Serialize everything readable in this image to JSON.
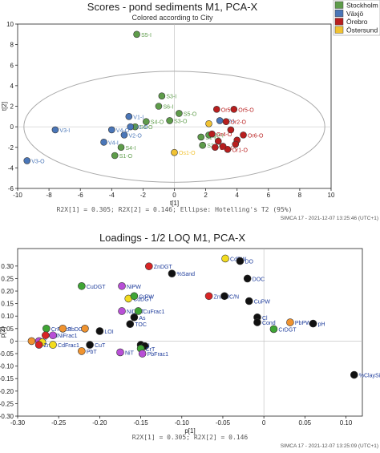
{
  "colors": {
    "stockholm": "#5e9c4a",
    "vaxjo": "#4a76b8",
    "orebro": "#b81e1e",
    "ostersund": "#f1c232",
    "loading_green": "#3fa535",
    "loading_purple": "#b84fd6",
    "loading_yellow": "#f3dc1f",
    "loading_black": "#111111",
    "loading_orange": "#f0932f",
    "loading_red": "#d82525",
    "loading_label": "#1f3d9c",
    "ellipse": "#aaaaaa",
    "axis": "#222222"
  },
  "chart_data": [
    {
      "type": "scatter",
      "title": "Scores - pond sediments M1, PCA-X",
      "subtitle": "Colored according to City",
      "xlabel": "t[1]",
      "ylabel": "t[2]",
      "xlim": [
        -10,
        10
      ],
      "ylim": [
        -6,
        10
      ],
      "x_ticks": [
        -10,
        -8,
        -6,
        -4,
        -2,
        0,
        2,
        4,
        6,
        8,
        10
      ],
      "y_ticks": [
        -6,
        -4,
        -2,
        0,
        2,
        4,
        6,
        8,
        10
      ],
      "x_tick_labels": [
        "-10",
        "-8",
        "-6",
        "-4",
        "-2",
        "0",
        "2",
        "4",
        "6",
        "8",
        "10"
      ],
      "y_tick_labels": [
        "-6",
        "-4",
        "-2",
        "0",
        "2",
        "4",
        "6",
        "8",
        "10"
      ],
      "footer": "R2X[1] = 0.305; R2X[2] = 0.146; Ellipse: Hotelling's T2 (95%)",
      "software": "SIMCA 17 - 2021-12-07 13:25:46 (UTC+1)",
      "legend": [
        {
          "name": "Stockholm",
          "color_key": "stockholm"
        },
        {
          "name": "Växjö",
          "color_key": "vaxjo"
        },
        {
          "name": "Örebro",
          "color_key": "orebro"
        },
        {
          "name": "Östersund",
          "color_key": "ostersund"
        }
      ],
      "ellipse": {
        "cx": 0,
        "cy": 0,
        "rx": 9.6,
        "ry": 5.4
      },
      "points": [
        {
          "x": -2.4,
          "y": 9.0,
          "label": "S5-I",
          "group": "stockholm"
        },
        {
          "x": -0.8,
          "y": 3.0,
          "label": "S3-I",
          "group": "stockholm"
        },
        {
          "x": -1.0,
          "y": 2.0,
          "label": "S6-I",
          "group": "stockholm"
        },
        {
          "x": -2.5,
          "y": 0.0,
          "label": "S6-O",
          "group": "stockholm"
        },
        {
          "x": -1.8,
          "y": 0.5,
          "label": "S4-O",
          "group": "stockholm"
        },
        {
          "x": -0.3,
          "y": 0.6,
          "label": "S3-O",
          "group": "stockholm"
        },
        {
          "x": 0.3,
          "y": 1.3,
          "label": "S5-O",
          "group": "stockholm"
        },
        {
          "x": -3.4,
          "y": -2.0,
          "label": "S4-I",
          "group": "stockholm"
        },
        {
          "x": -3.8,
          "y": -2.8,
          "label": "S1-O",
          "group": "stockholm"
        },
        {
          "x": 1.8,
          "y": -1.8,
          "label": "S2-O",
          "group": "stockholm"
        },
        {
          "x": 1.7,
          "y": -1.0,
          "label": "S1-I",
          "group": "stockholm"
        },
        {
          "x": 2.2,
          "y": -0.8,
          "label": "S2-I",
          "group": "stockholm"
        },
        {
          "x": -2.9,
          "y": 1.0,
          "label": "V1-I",
          "group": "vaxjo"
        },
        {
          "x": -2.8,
          "y": 0.0,
          "label": "V1-O",
          "group": "vaxjo"
        },
        {
          "x": -3.2,
          "y": -0.8,
          "label": "V2-O",
          "group": "vaxjo"
        },
        {
          "x": -4.5,
          "y": -1.5,
          "label": "V4-I",
          "group": "vaxjo"
        },
        {
          "x": -4.0,
          "y": -0.3,
          "label": "V4-O",
          "group": "vaxjo"
        },
        {
          "x": -7.6,
          "y": -0.3,
          "label": "V3-I",
          "group": "vaxjo"
        },
        {
          "x": -9.4,
          "y": -3.3,
          "label": "V3-O",
          "group": "vaxjo"
        },
        {
          "x": 2.9,
          "y": 0.6,
          "label": "V2-I",
          "group": "vaxjo"
        },
        {
          "x": 2.7,
          "y": 1.7,
          "label": "Or5-I",
          "group": "orebro"
        },
        {
          "x": 3.8,
          "y": 1.7,
          "label": "Or5-O",
          "group": "orebro"
        },
        {
          "x": 3.3,
          "y": 0.5,
          "label": "Or2-O",
          "group": "orebro"
        },
        {
          "x": 2.4,
          "y": -0.7,
          "label": "Or4-O",
          "group": "orebro"
        },
        {
          "x": 4.4,
          "y": -0.8,
          "label": "Or6-O",
          "group": "orebro"
        },
        {
          "x": 3.4,
          "y": -2.2,
          "label": "Or1-O",
          "group": "orebro"
        },
        {
          "x": 3.6,
          "y": -0.3,
          "label": "",
          "group": "orebro"
        },
        {
          "x": 4.0,
          "y": -1.3,
          "label": "",
          "group": "orebro"
        },
        {
          "x": 2.8,
          "y": -1.4,
          "label": "",
          "group": "orebro"
        },
        {
          "x": 3.1,
          "y": -1.9,
          "label": "",
          "group": "orebro"
        },
        {
          "x": 3.9,
          "y": -1.7,
          "label": "",
          "group": "orebro"
        },
        {
          "x": 2.6,
          "y": -2.0,
          "label": "Or3-I",
          "group": "orebro"
        },
        {
          "x": 0.0,
          "y": -2.5,
          "label": "Os1-O",
          "group": "ostersund"
        },
        {
          "x": 2.2,
          "y": 0.3,
          "label": "",
          "group": "ostersund"
        }
      ]
    },
    {
      "type": "scatter",
      "title": "Loadings - 1/2 LOQ M1, PCA-X",
      "xlabel": "p[1]",
      "ylabel": "p[2]",
      "xlim": [
        -0.3,
        0.12
      ],
      "ylim": [
        -0.3,
        0.37
      ],
      "x_ticks": [
        -0.3,
        -0.25,
        -0.2,
        -0.15,
        -0.1,
        -0.05,
        0,
        0.05,
        0.1
      ],
      "y_ticks": [
        -0.3,
        -0.25,
        -0.2,
        -0.15,
        -0.1,
        -0.05,
        0,
        0.05,
        0.1,
        0.15,
        0.2,
        0.25,
        0.3
      ],
      "x_tick_labels": [
        "-0.30",
        "-0.25",
        "-0.20",
        "-0.15",
        "-0.10",
        "-0.05",
        "0",
        "0.05",
        "0.10"
      ],
      "y_tick_labels": [
        "-0.30",
        "-0.25",
        "-0.20",
        "-0.15",
        "-0.10",
        "-0.05",
        "0",
        "0.05",
        "0.10",
        "0.15",
        "0.20",
        "0.25",
        "0.30"
      ],
      "footer": "R2X[1] = 0.305; R2X[2] = 0.146",
      "software": "SIMCA 17 - 2021-12-07 13:25:09 (UTC+1)",
      "points": [
        {
          "x": -0.047,
          "y": 0.33,
          "label": "CdPW",
          "color_key": "loading_yellow"
        },
        {
          "x": -0.029,
          "y": 0.32,
          "label": "DO",
          "color_key": "loading_black"
        },
        {
          "x": -0.14,
          "y": 0.299,
          "label": "ZnDGT",
          "color_key": "loading_red"
        },
        {
          "x": -0.112,
          "y": 0.27,
          "label": "%Sand",
          "color_key": "loading_black"
        },
        {
          "x": -0.02,
          "y": 0.25,
          "label": "DOC",
          "color_key": "loading_black"
        },
        {
          "x": -0.222,
          "y": 0.22,
          "label": "CuDGT",
          "color_key": "loading_green"
        },
        {
          "x": -0.173,
          "y": 0.22,
          "label": "NiPW",
          "color_key": "loading_purple"
        },
        {
          "x": -0.165,
          "y": 0.17,
          "label": "CdDGT",
          "color_key": "loading_yellow"
        },
        {
          "x": -0.158,
          "y": 0.18,
          "label": "CrPW",
          "color_key": "loading_green"
        },
        {
          "x": -0.067,
          "y": 0.18,
          "label": "ZnPW",
          "color_key": "loading_red"
        },
        {
          "x": -0.048,
          "y": 0.18,
          "label": "C/N",
          "color_key": "loading_black"
        },
        {
          "x": -0.018,
          "y": 0.16,
          "label": "CuPW",
          "color_key": "loading_black"
        },
        {
          "x": -0.173,
          "y": 0.12,
          "label": "NiDGT",
          "color_key": "loading_purple"
        },
        {
          "x": -0.153,
          "y": 0.12,
          "label": "CuFrac1",
          "color_key": "loading_green"
        },
        {
          "x": -0.158,
          "y": 0.095,
          "label": "As",
          "color_key": "loading_black"
        },
        {
          "x": -0.163,
          "y": 0.068,
          "label": "TOC",
          "color_key": "loading_black"
        },
        {
          "x": -0.008,
          "y": 0.095,
          "label": "Cl",
          "color_key": "loading_black"
        },
        {
          "x": -0.008,
          "y": 0.075,
          "label": "Cond",
          "color_key": "loading_black"
        },
        {
          "x": 0.032,
          "y": 0.075,
          "label": "PbPW",
          "color_key": "loading_orange"
        },
        {
          "x": 0.06,
          "y": 0.07,
          "label": "pH",
          "color_key": "loading_black"
        },
        {
          "x": 0.012,
          "y": 0.048,
          "label": "CrDGT",
          "color_key": "loading_green"
        },
        {
          "x": -0.265,
          "y": 0.05,
          "label": "CrFrac1",
          "color_key": "loading_green"
        },
        {
          "x": -0.245,
          "y": 0.05,
          "label": "PbDGT",
          "color_key": "loading_orange"
        },
        {
          "x": -0.218,
          "y": 0.05,
          "label": "",
          "color_key": "loading_orange"
        },
        {
          "x": -0.2,
          "y": 0.04,
          "label": "LOI",
          "color_key": "loading_black"
        },
        {
          "x": -0.266,
          "y": 0.023,
          "label": "Cd",
          "color_key": "loading_red"
        },
        {
          "x": -0.257,
          "y": 0.023,
          "label": "NiFrac1",
          "color_key": "loading_purple"
        },
        {
          "x": -0.283,
          "y": 0.0,
          "label": "CdT",
          "color_key": "loading_orange"
        },
        {
          "x": -0.274,
          "y": 0.0,
          "label": "",
          "color_key": "loading_purple"
        },
        {
          "x": -0.27,
          "y": -0.005,
          "label": "",
          "color_key": "loading_yellow"
        },
        {
          "x": -0.274,
          "y": -0.015,
          "label": "ZnT",
          "color_key": "loading_red"
        },
        {
          "x": -0.257,
          "y": -0.015,
          "label": "CdFrac1",
          "color_key": "loading_yellow"
        },
        {
          "x": -0.212,
          "y": -0.015,
          "label": "CuT",
          "color_key": "loading_black"
        },
        {
          "x": -0.15,
          "y": -0.015,
          "label": "N",
          "color_key": "loading_black"
        },
        {
          "x": -0.145,
          "y": -0.02,
          "label": "",
          "color_key": "loading_black"
        },
        {
          "x": -0.15,
          "y": -0.03,
          "label": "CrT",
          "color_key": "loading_green"
        },
        {
          "x": -0.222,
          "y": -0.04,
          "label": "PbT",
          "color_key": "loading_orange"
        },
        {
          "x": -0.175,
          "y": -0.045,
          "label": "NiT",
          "color_key": "loading_purple"
        },
        {
          "x": -0.148,
          "y": -0.05,
          "label": "PbFrac1",
          "color_key": "loading_purple"
        },
        {
          "x": 0.11,
          "y": -0.135,
          "label": "%ClaySilt",
          "color_key": "loading_black"
        }
      ]
    }
  ]
}
